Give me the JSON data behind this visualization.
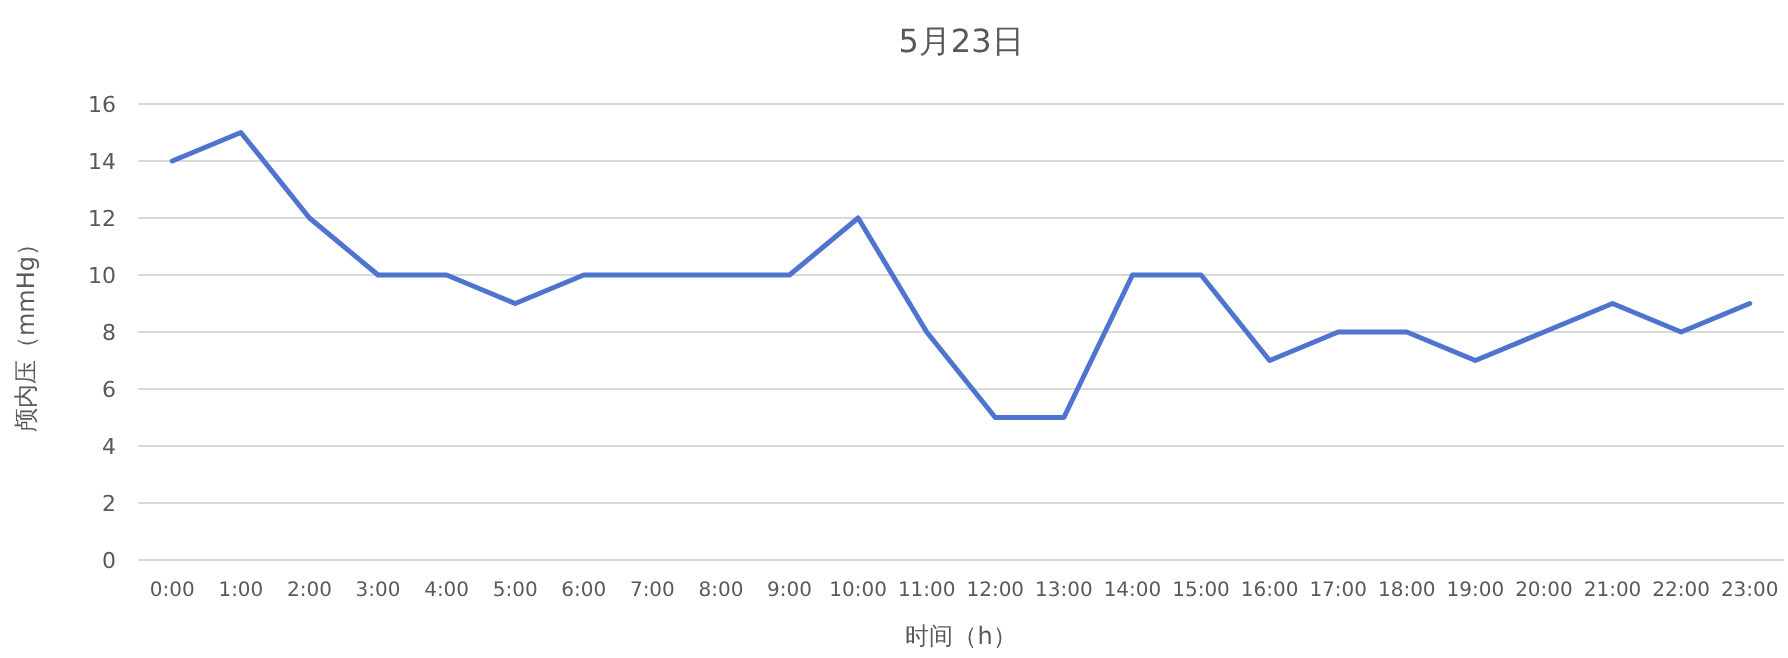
{
  "chart_data": {
    "type": "line",
    "title": "5月23日",
    "xlabel": "时间（h）",
    "ylabel": "颅内压（mmHg）",
    "categories": [
      "0:00",
      "1:00",
      "2:00",
      "3:00",
      "4:00",
      "5:00",
      "6:00",
      "7:00",
      "8:00",
      "9:00",
      "10:00",
      "11:00",
      "12:00",
      "13:00",
      "14:00",
      "15:00",
      "16:00",
      "17:00",
      "18:00",
      "19:00",
      "20:00",
      "21:00",
      "22:00",
      "23:00"
    ],
    "series": [
      {
        "color": "#4f74d0",
        "values": [
          14,
          15,
          12,
          10,
          10,
          9,
          10,
          10,
          10,
          10,
          12,
          8,
          5,
          5,
          10,
          10,
          7,
          8,
          8,
          7,
          8,
          9,
          8,
          9
        ]
      }
    ],
    "ylim": [
      0,
      16
    ],
    "yticks": [
      0,
      2,
      4,
      6,
      8,
      10,
      12,
      14,
      16
    ],
    "grid": "y",
    "marker": "none",
    "line_style": "solid"
  }
}
